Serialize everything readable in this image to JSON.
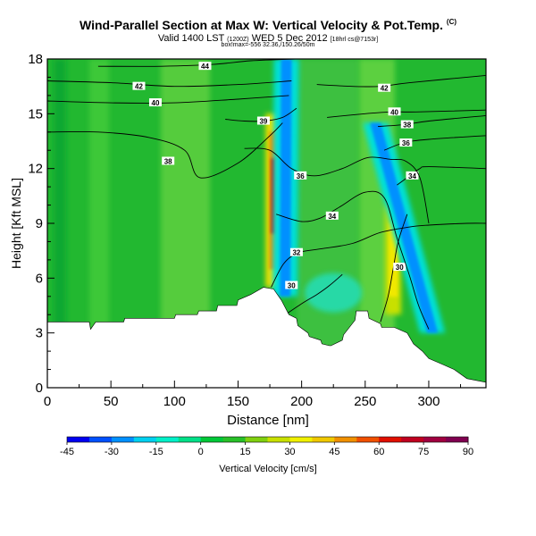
{
  "header": {
    "title": "Wind-Parallel Section at Max W: Vertical Velocity & Pot.Temp.",
    "title_mark": "(C)",
    "subtitle_main": "Valid 1400 LST",
    "subtitle_utc": "(1200Z)",
    "subtitle_date": "WED 5 Dec 2012",
    "subtitle_model": "[18hrl cs@7153r]",
    "subtitle2": "box!max=-556 32.36,/150.26/50m"
  },
  "chart_data": {
    "type": "heatmap",
    "xlabel": "Distance [nm]",
    "ylabel": "Height [Kft MSL]",
    "xlim": [
      0,
      345
    ],
    "ylim": [
      0,
      18
    ],
    "x_ticks": [
      "0",
      "50",
      "100",
      "150",
      "200",
      "250",
      "300"
    ],
    "y_ticks": [
      "0",
      "3",
      "6",
      "9",
      "12",
      "15",
      "18"
    ],
    "x_tick_values": [
      0,
      50,
      100,
      150,
      200,
      250,
      300
    ],
    "y_tick_values": [
      0,
      3,
      6,
      9,
      12,
      15,
      18
    ],
    "terrain": {
      "x": [
        0,
        10,
        33,
        34,
        38,
        60,
        61,
        100,
        101,
        118,
        119,
        133,
        134,
        149,
        150,
        160,
        170,
        178,
        184,
        190,
        196,
        197,
        205,
        206,
        215,
        216,
        222,
        223,
        232,
        233,
        242,
        243,
        252,
        253,
        262,
        263,
        272,
        273,
        283,
        288,
        295,
        300,
        310,
        320,
        330,
        345
      ],
      "y": [
        3.6,
        3.6,
        3.6,
        3.2,
        3.6,
        3.6,
        3.8,
        3.8,
        4.0,
        4.0,
        4.2,
        4.2,
        4.5,
        4.5,
        4.8,
        5.1,
        5.5,
        5.4,
        4.8,
        4.0,
        3.8,
        3.4,
        3.0,
        2.8,
        2.6,
        2.4,
        2.3,
        2.3,
        2.6,
        2.9,
        3.7,
        4.2,
        4.2,
        3.8,
        3.5,
        3.3,
        3.3,
        3.3,
        3.0,
        2.4,
        2.0,
        1.6,
        1.3,
        1.0,
        0.5,
        0.3
      ]
    },
    "theta_contours": [
      {
        "label": "30",
        "x": [
          183,
          200,
          212,
          222,
          232
        ],
        "y": [
          3.8,
          4.6,
          5.1,
          5.6,
          6.2
        ],
        "lx": 192,
        "ly": 5.6
      },
      {
        "label": "30",
        "x": [
          262,
          268,
          272,
          276,
          283
        ],
        "y": [
          3.6,
          5.0,
          6.5,
          8.0,
          9.5
        ],
        "lx": 277,
        "ly": 6.6
      },
      {
        "label": "32",
        "x": [
          176,
          186,
          198,
          215,
          240,
          262,
          285,
          300,
          330,
          345
        ],
        "y": [
          5.5,
          6.8,
          7.4,
          7.6,
          7.9,
          8.5,
          8.8,
          8.9,
          9.0,
          9.0
        ],
        "lx": 196,
        "ly": 7.4
      },
      {
        "label": "34",
        "x": [
          180,
          200,
          215,
          230,
          250,
          265,
          275,
          285,
          292,
          300
        ],
        "y": [
          9.5,
          9.1,
          9.3,
          9.9,
          10.7,
          10.4,
          8.2,
          6.1,
          4.5,
          3.2
        ],
        "lx": 224,
        "ly": 9.4
      },
      {
        "label": "34",
        "x": [
          275,
          285,
          293,
          300,
          345
        ],
        "y": [
          11.1,
          11.6,
          12.0,
          12.1,
          12.0
        ],
        "lx": 287,
        "ly": 11.6
      },
      {
        "label": "36",
        "x": [
          155,
          175,
          192,
          210,
          232,
          252,
          270,
          282,
          293,
          300
        ],
        "y": [
          13.1,
          13.0,
          12.0,
          11.6,
          12.0,
          12.6,
          12.5,
          12.4,
          11.5,
          9.0
        ],
        "lx": 199,
        "ly": 11.6
      },
      {
        "label": "36",
        "x": [
          265,
          280,
          300,
          345
        ],
        "y": [
          13.0,
          13.4,
          13.6,
          13.8
        ],
        "lx": 282,
        "ly": 13.4
      },
      {
        "label": "38",
        "x": [
          0,
          40,
          80,
          108,
          120,
          150,
          175,
          185
        ],
        "y": [
          14.0,
          14.0,
          13.7,
          13.0,
          11.5,
          12.3,
          13.8,
          14.5
        ],
        "lx": 95,
        "ly": 12.4
      },
      {
        "label": "38",
        "x": [
          260,
          280,
          300,
          345
        ],
        "y": [
          14.3,
          14.4,
          14.6,
          14.9
        ],
        "lx": 283,
        "ly": 14.4
      },
      {
        "label": "39",
        "x": [
          140,
          155,
          170,
          185,
          196
        ],
        "y": [
          14.7,
          14.6,
          14.6,
          14.8,
          15.3
        ],
        "lx": 170,
        "ly": 14.6
      },
      {
        "label": "40",
        "x": [
          0,
          50,
          100,
          150,
          190
        ],
        "y": [
          15.7,
          15.6,
          15.6,
          15.8,
          16.0
        ],
        "lx": 85,
        "ly": 15.6
      },
      {
        "label": "40",
        "x": [
          220,
          250,
          270,
          290,
          345
        ],
        "y": [
          14.8,
          15.0,
          15.1,
          15.1,
          15.2
        ],
        "lx": 273,
        "ly": 15.1
      },
      {
        "label": "42",
        "x": [
          0,
          50,
          100,
          150,
          192
        ],
        "y": [
          16.8,
          16.7,
          16.5,
          16.6,
          16.8
        ],
        "lx": 72,
        "ly": 16.5
      },
      {
        "label": "42",
        "x": [
          212,
          240,
          262,
          285,
          345
        ],
        "y": [
          16.6,
          16.5,
          16.5,
          16.7,
          17.1
        ],
        "lx": 265,
        "ly": 16.4
      },
      {
        "label": "44",
        "x": [
          40,
          90,
          130,
          160,
          195
        ],
        "y": [
          17.6,
          17.6,
          17.7,
          17.9,
          18.0
        ],
        "lx": 124,
        "ly": 17.6
      }
    ],
    "w_features": [
      {
        "kind": "updraft",
        "x": 178,
        "y": [
          5.5,
          15.0
        ],
        "w_cm_s": 75
      },
      {
        "kind": "downdraft",
        "x_top": 188,
        "x_bottom": 187,
        "y": [
          5.0,
          18.0
        ],
        "w_cm_s": -30
      },
      {
        "kind": "updraft",
        "x": 272,
        "y": [
          4.0,
          10.0
        ],
        "w_cm_s": 40
      },
      {
        "kind": "downdraft",
        "x_top": 258,
        "x_bottom": 303,
        "y": [
          3.0,
          14.5
        ],
        "w_cm_s": -30
      }
    ]
  },
  "colorbar": {
    "label": "Vertical Velocity [cm/s]",
    "ticks": [
      "-45",
      "-30",
      "-15",
      "0",
      "15",
      "30",
      "45",
      "60",
      "75",
      "90"
    ],
    "colors": [
      "#0000f0",
      "#0050ff",
      "#0090ff",
      "#00d0f0",
      "#00f0c8",
      "#00e088",
      "#00c838",
      "#28c028",
      "#80d010",
      "#c8e000",
      "#f0f000",
      "#f0c800",
      "#f09000",
      "#f05000",
      "#e01000",
      "#c00020",
      "#a00040",
      "#800050"
    ]
  }
}
